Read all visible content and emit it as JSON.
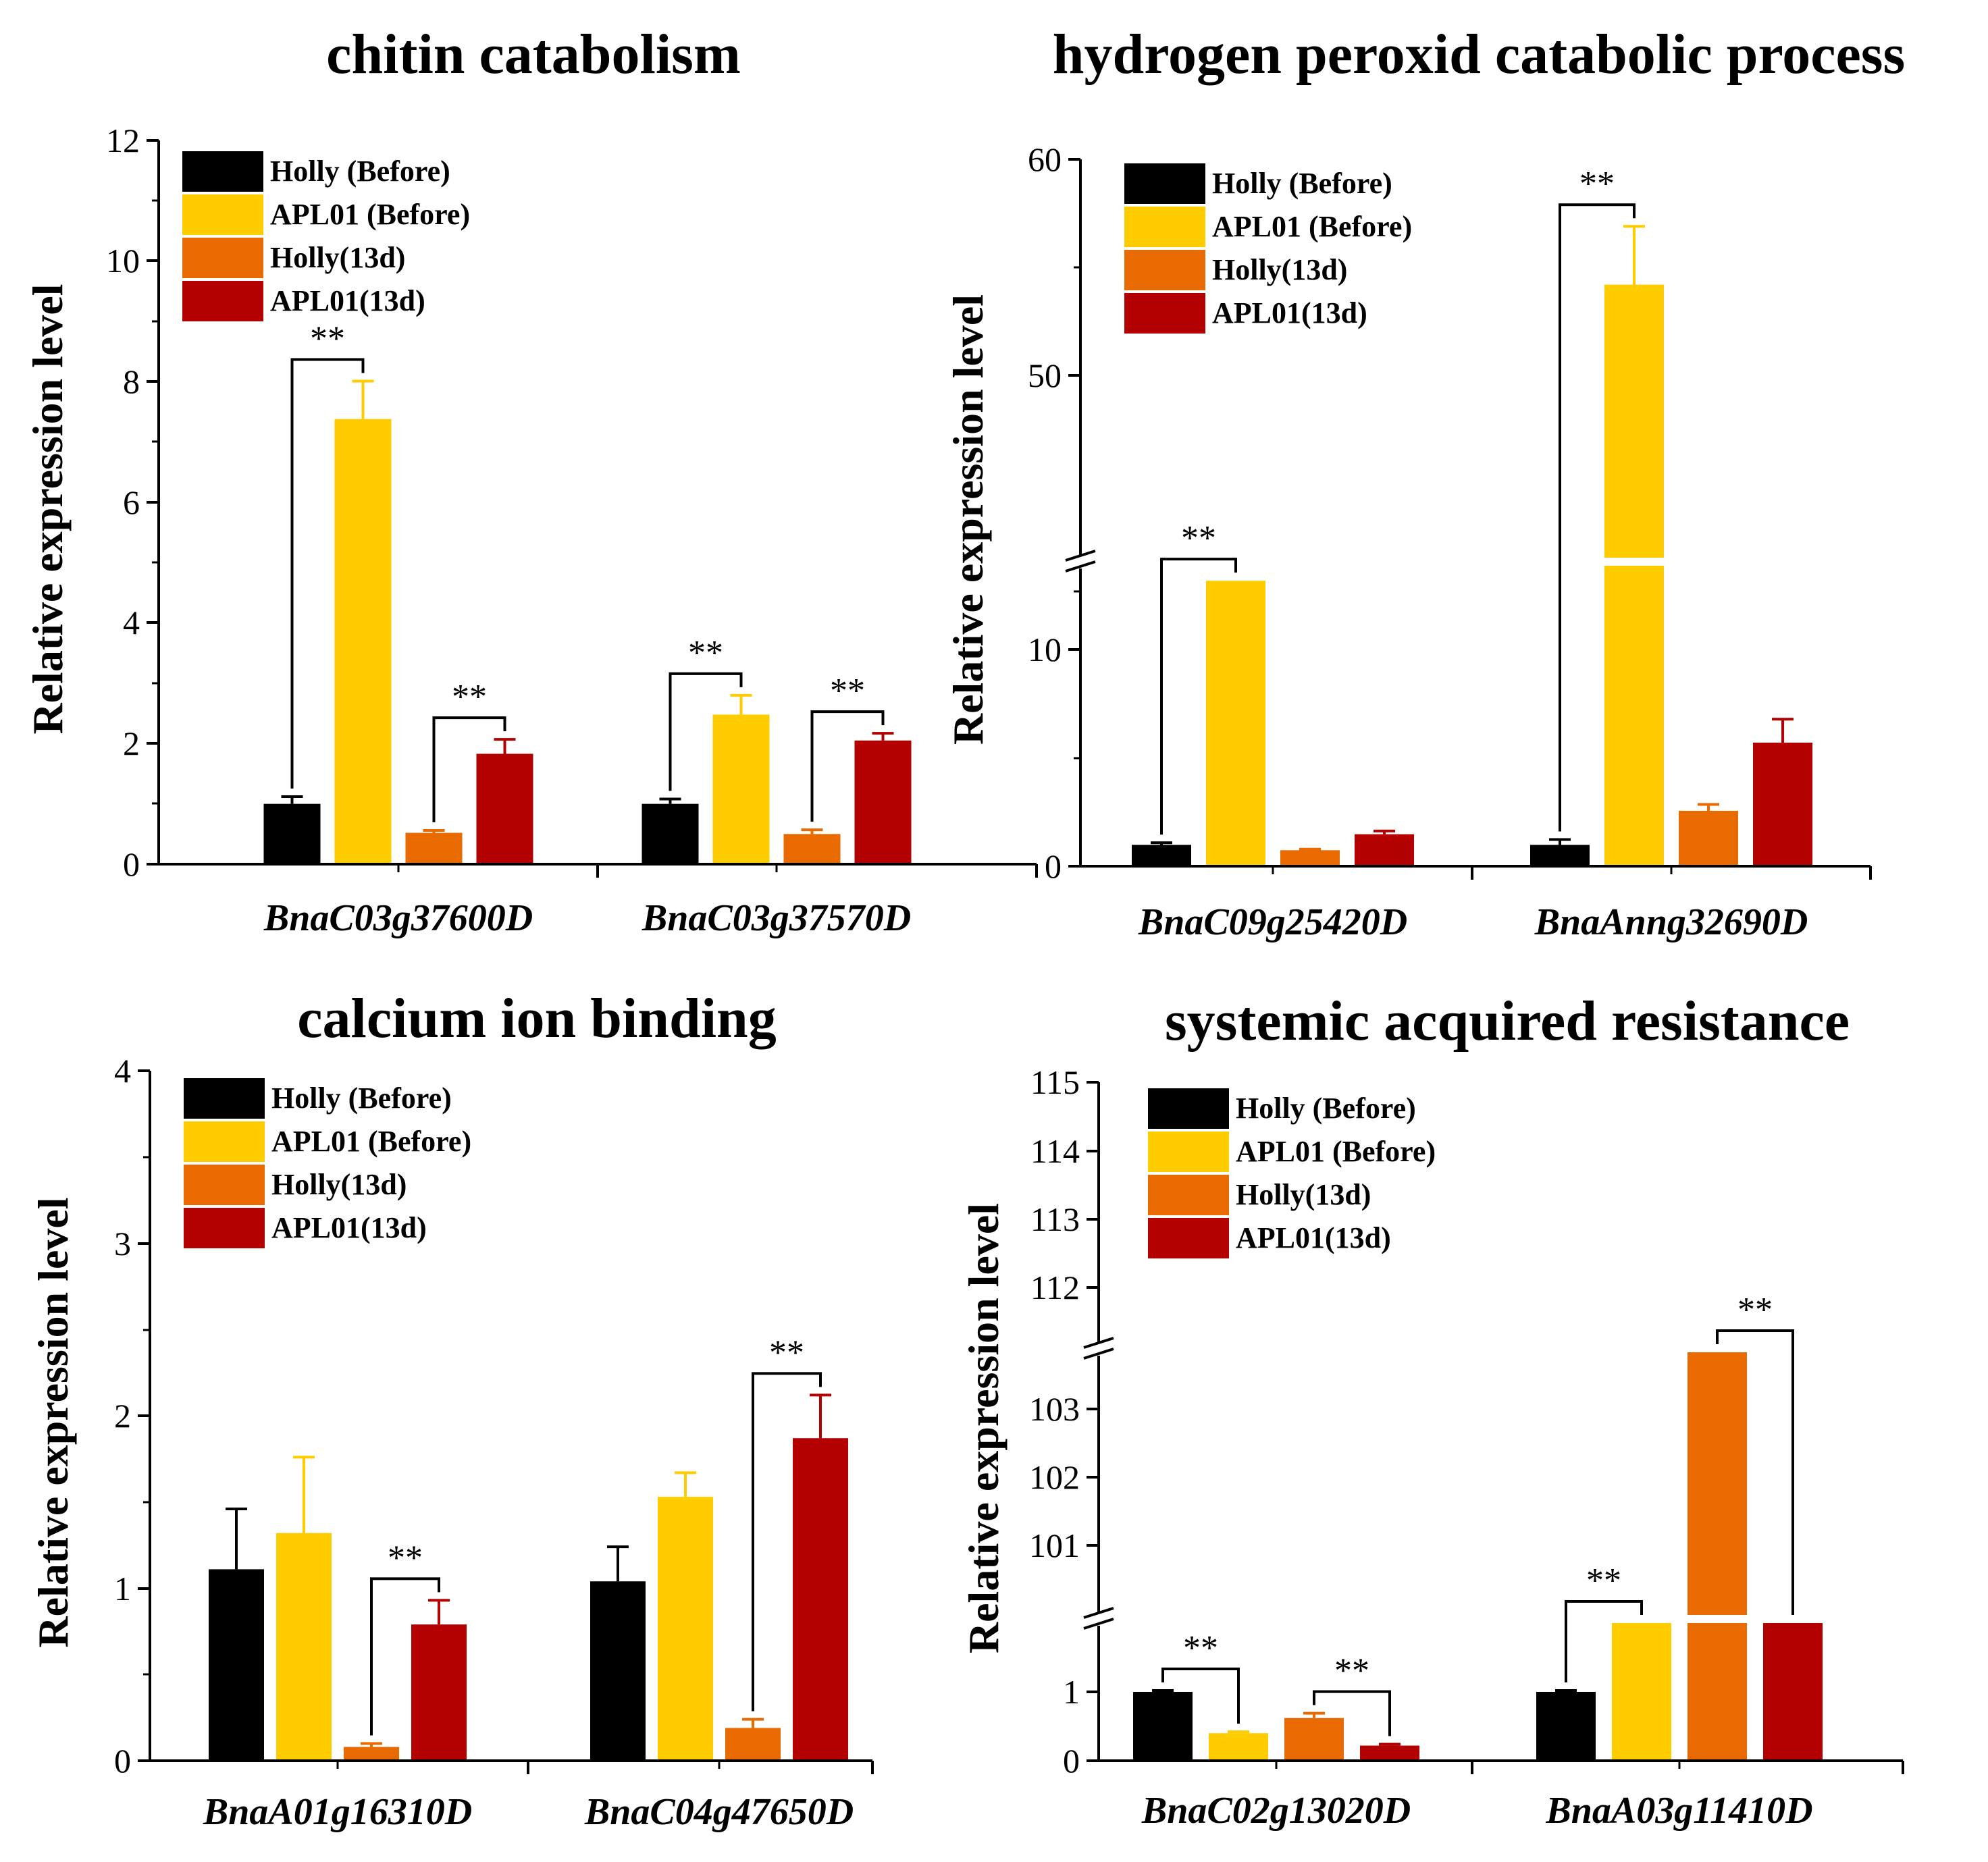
{
  "colors": {
    "holly_before": "#000000",
    "apl01_before": "#FFCC00",
    "holly_13d": "#E86A00",
    "apl01_13d": "#B30000"
  },
  "chart_data": [
    {
      "type": "bar",
      "title": "chitin catabolism",
      "ylabel": "Relative expression level",
      "ylim": [
        0,
        12
      ],
      "yticks": [
        "0",
        "2",
        "4",
        "6",
        "8",
        "10",
        "12"
      ],
      "categories": [
        "BnaC03g37600D",
        "BnaC03g37570D"
      ],
      "legend": [
        "Holly (Before)",
        "APL01 (Before)",
        "Holly(13d)",
        "APL01(13d)"
      ],
      "series": [
        {
          "name": "Holly (Before)",
          "values": [
            1.0,
            1.0
          ],
          "errors": [
            0.12,
            0.08
          ]
        },
        {
          "name": "APL01 (Before)",
          "values": [
            7.38,
            2.48
          ],
          "errors": [
            0.63,
            0.32
          ]
        },
        {
          "name": "Holly(13d)",
          "values": [
            0.52,
            0.5
          ],
          "errors": [
            0.04,
            0.07
          ]
        },
        {
          "name": "APL01(13d)",
          "values": [
            1.83,
            2.05
          ],
          "errors": [
            0.24,
            0.12
          ]
        }
      ],
      "significance": [
        {
          "label": "**",
          "cat": 0,
          "from": 0,
          "to": 1
        },
        {
          "label": "**",
          "cat": 0,
          "from": 2,
          "to": 3
        },
        {
          "label": "**",
          "cat": 1,
          "from": 0,
          "to": 1
        },
        {
          "label": "**",
          "cat": 1,
          "from": 2,
          "to": 3
        }
      ]
    },
    {
      "type": "bar",
      "title": "hydrogen peroxid catabolic process",
      "ylabel": "Relative expression level",
      "axis_break": {
        "lower": [
          0,
          14.8
        ],
        "upper": [
          40,
          60
        ]
      },
      "yticks": [
        "0",
        "10",
        "50",
        "60"
      ],
      "categories": [
        "BnaC09g25420D",
        "BnaAnng32690D"
      ],
      "legend": [
        "Holly (Before)",
        "APL01 (Before)",
        "Holly(13d)",
        "APL01(13d)"
      ],
      "series": [
        {
          "name": "Holly (Before)",
          "values": [
            1.0,
            1.0
          ],
          "errors": [
            0.1,
            0.25
          ]
        },
        {
          "name": "APL01 (Before)",
          "values": [
            13.4,
            54.2
          ],
          "errors": [
            0.0,
            2.7
          ]
        },
        {
          "name": "Holly(13d)",
          "values": [
            0.75,
            2.6
          ],
          "errors": [
            0.05,
            0.3
          ]
        },
        {
          "name": "APL01(13d)",
          "values": [
            1.5,
            5.8
          ],
          "errors": [
            0.15,
            1.1
          ]
        }
      ],
      "significance": [
        {
          "label": "**",
          "cat": 0,
          "from": 0,
          "to": 1
        },
        {
          "label": "**",
          "cat": 1,
          "from": 0,
          "to": 1
        }
      ]
    },
    {
      "type": "bar",
      "title": "calcium ion binding",
      "ylabel": "Relative expression level",
      "ylim": [
        0,
        4
      ],
      "yticks": [
        "0",
        "1",
        "2",
        "3",
        "4"
      ],
      "categories": [
        "BnaA01g16310D",
        "BnaC04g47650D"
      ],
      "legend": [
        "Holly (Before)",
        "APL01 (Before)",
        "Holly(13d)",
        "APL01(13d)"
      ],
      "series": [
        {
          "name": "Holly (Before)",
          "values": [
            1.11,
            1.04
          ],
          "errors": [
            0.35,
            0.2
          ]
        },
        {
          "name": "APL01 (Before)",
          "values": [
            1.32,
            1.53
          ],
          "errors": [
            0.44,
            0.14
          ]
        },
        {
          "name": "Holly(13d)",
          "values": [
            0.08,
            0.19
          ],
          "errors": [
            0.02,
            0.05
          ]
        },
        {
          "name": "APL01(13d)",
          "values": [
            0.79,
            1.87
          ],
          "errors": [
            0.14,
            0.25
          ]
        }
      ],
      "significance": [
        {
          "label": "**",
          "cat": 0,
          "from": 2,
          "to": 3
        },
        {
          "label": "**",
          "cat": 1,
          "from": 2,
          "to": 3
        }
      ]
    },
    {
      "type": "bar",
      "title": "systemic acquired resistance",
      "ylabel": "Relative expression level",
      "axis_break": {
        "lower": [
          0,
          2
        ],
        "middle": [
          100,
          103.8
        ],
        "upper": [
          111,
          115
        ]
      },
      "yticks": [
        "0",
        "1",
        "101",
        "102",
        "103",
        "112",
        "113",
        "114",
        "115"
      ],
      "categories": [
        "BnaC02g13020D",
        "BnaA03g11410D"
      ],
      "legend": [
        "Holly (Before)",
        "APL01 (Before)",
        "Holly(13d)",
        "APL01(13d)"
      ],
      "series": [
        {
          "name": "Holly (Before)",
          "values": [
            1.0,
            1.0
          ],
          "errors": [
            0.02,
            0.02
          ]
        },
        {
          "name": "APL01 (Before)",
          "values": [
            0.4,
            2.0
          ],
          "errors": [
            0.02,
            0.0
          ]
        },
        {
          "name": "Holly(13d)",
          "values": [
            0.62,
            103.8
          ],
          "errors": [
            0.07,
            0.0
          ]
        },
        {
          "name": "APL01(13d)",
          "values": [
            0.22,
            2.0
          ],
          "errors": [
            0.02,
            0.0
          ]
        }
      ],
      "significance": [
        {
          "label": "**",
          "cat": 0,
          "from": 0,
          "to": 1
        },
        {
          "label": "**",
          "cat": 0,
          "from": 2,
          "to": 3
        },
        {
          "label": "**",
          "cat": 1,
          "from": 0,
          "to": 1
        },
        {
          "label": "**",
          "cat": 1,
          "from": 2,
          "to": 3
        }
      ]
    }
  ]
}
